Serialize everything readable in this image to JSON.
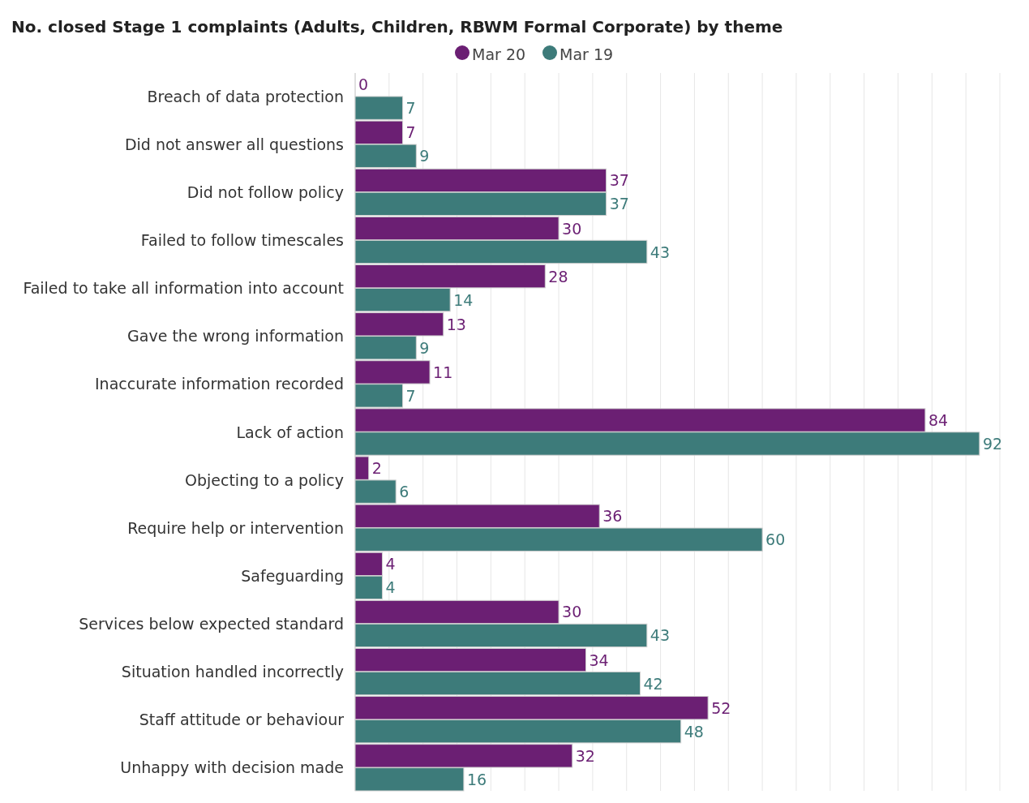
{
  "chart_data": {
    "type": "bar",
    "orientation": "horizontal",
    "title": "No. closed Stage 1 complaints (Adults, Children, RBWM Formal Corporate) by theme",
    "categories": [
      "Breach of data protection",
      "Did not answer all questions",
      "Did not follow policy",
      "Failed to follow timescales",
      "Failed to take all information into account",
      "Gave the wrong information",
      "Inaccurate information recorded",
      "Lack of action",
      "Objecting to a policy",
      "Require help or intervention",
      "Safeguarding",
      "Services below expected standard",
      "Situation handled incorrectly",
      "Staff attitude or behaviour",
      "Unhappy with decision made"
    ],
    "series": [
      {
        "name": "Mar 20",
        "color": "#6b1f73",
        "values": [
          0,
          7,
          37,
          30,
          28,
          13,
          11,
          84,
          2,
          36,
          4,
          30,
          34,
          52,
          32
        ]
      },
      {
        "name": "Mar 19",
        "color": "#3d7b7a",
        "values": [
          7,
          9,
          37,
          43,
          14,
          9,
          7,
          92,
          6,
          60,
          4,
          43,
          42,
          48,
          16
        ]
      }
    ],
    "xlim": [
      0,
      95
    ],
    "xticks": [
      {
        "value": 0,
        "label": null
      },
      {
        "value": 5,
        "label": null
      },
      {
        "value": 10,
        "label": null
      },
      {
        "value": 15,
        "label": null
      },
      {
        "value": 20,
        "label": null
      },
      {
        "value": 25,
        "label": null
      },
      {
        "value": 30,
        "label": null
      },
      {
        "value": 35,
        "label": null
      },
      {
        "value": 40,
        "label": null
      },
      {
        "value": 45,
        "label": null
      },
      {
        "value": 50,
        "label": null
      },
      {
        "value": 55,
        "label": null
      },
      {
        "value": 60,
        "label": null
      },
      {
        "value": 65,
        "label": null
      },
      {
        "value": 70,
        "label": null
      },
      {
        "value": 75,
        "label": null
      },
      {
        "value": 80,
        "label": null
      },
      {
        "value": 85,
        "label": null
      },
      {
        "value": 90,
        "label": null
      },
      {
        "value": 95,
        "label": null
      }
    ],
    "grid": "x",
    "legend": "top",
    "tick_labels": "y",
    "data_labels": true
  }
}
